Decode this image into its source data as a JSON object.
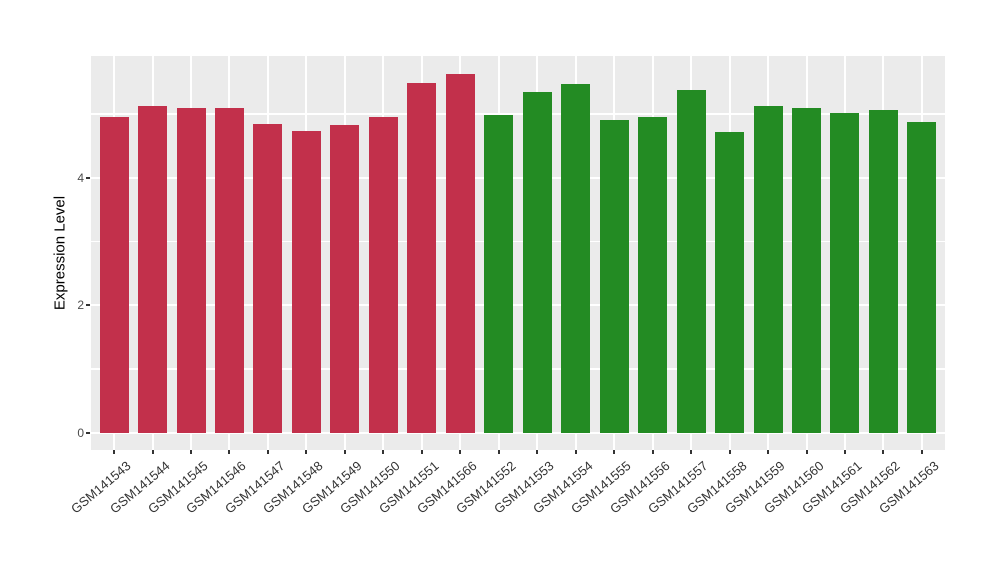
{
  "chart_data": {
    "type": "bar",
    "title": "",
    "xlabel": "",
    "ylabel": "Expression Level",
    "categories": [
      "GSM141543",
      "GSM141544",
      "GSM141545",
      "GSM141546",
      "GSM141547",
      "GSM141548",
      "GSM141549",
      "GSM141550",
      "GSM141551",
      "GSM141566",
      "GSM141552",
      "GSM141553",
      "GSM141554",
      "GSM141555",
      "GSM141556",
      "GSM141557",
      "GSM141558",
      "GSM141559",
      "GSM141560",
      "GSM141561",
      "GSM141562",
      "GSM141563"
    ],
    "values": [
      4.96,
      5.12,
      5.09,
      5.1,
      4.84,
      4.74,
      4.82,
      4.95,
      5.49,
      5.63,
      4.98,
      5.35,
      5.47,
      4.9,
      4.96,
      5.38,
      4.72,
      5.12,
      5.1,
      5.02,
      5.06,
      4.87
    ],
    "groups": [
      "red",
      "red",
      "red",
      "red",
      "red",
      "red",
      "red",
      "red",
      "red",
      "red",
      "green",
      "green",
      "green",
      "green",
      "green",
      "green",
      "green",
      "green",
      "green",
      "green",
      "green",
      "green"
    ],
    "group_colors": {
      "red": "#C2304B",
      "green": "#238B23"
    },
    "yticks": [
      0,
      2,
      4
    ],
    "gridline_values": [
      0,
      1,
      2,
      3,
      4,
      5
    ],
    "ylim": [
      -0.27,
      5.91
    ],
    "grid": true,
    "legend": "none",
    "panel_background": "#EBEBEB",
    "grid_color": "#FFFFFF",
    "figure_background": "#FFFFFF",
    "tick_label_color": "#4D4D4D",
    "x_label_color": "#333333"
  }
}
